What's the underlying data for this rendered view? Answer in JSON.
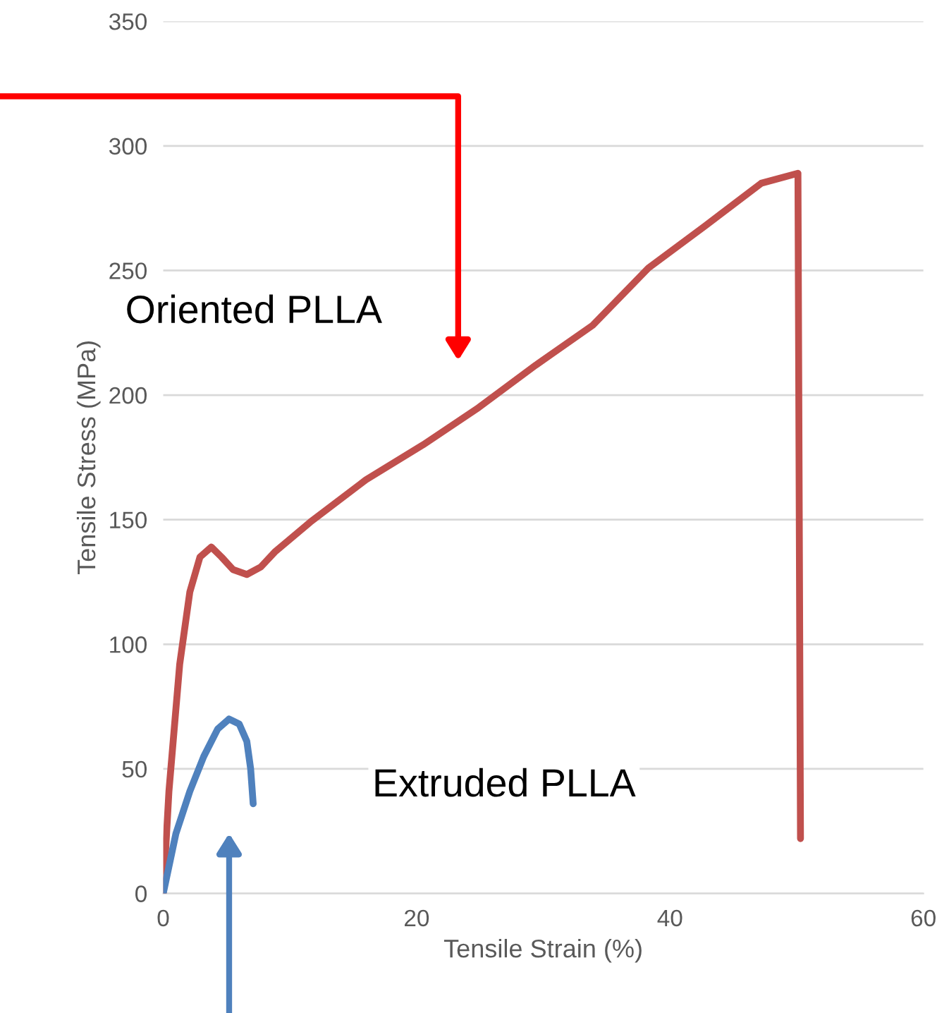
{
  "chart_data": {
    "type": "line",
    "xlabel": "Tensile Strain (%)",
    "ylabel": "Tensile Stress (MPa)",
    "xlim": [
      0,
      60
    ],
    "ylim": [
      0,
      350
    ],
    "xticks": [
      0,
      20,
      40,
      60
    ],
    "yticks": [
      0,
      50,
      100,
      150,
      200,
      250,
      300,
      350
    ],
    "grid": "y",
    "legend": false,
    "marker": "none",
    "line_style": "solid",
    "annotations": [
      "Oriented PLLA",
      "Extruded PLLA"
    ],
    "series": [
      {
        "color": "#c0504d",
        "x": [
          0,
          0.45,
          1.3,
          2.1,
          2.9,
          3.8,
          4.6,
          5.5,
          6.6,
          7.7,
          8.8,
          11.6,
          16,
          20.5,
          24.9,
          29.4,
          33.9,
          38.3,
          42.8,
          47.2,
          50.1,
          50.3
        ],
        "values": [
          0,
          41,
          92,
          121,
          135,
          139,
          135,
          130,
          128,
          131,
          137,
          149,
          166,
          180,
          195,
          212,
          228,
          251,
          268,
          285,
          289,
          22
        ]
      },
      {
        "color": "#4f81bd",
        "x": [
          0,
          1,
          2.1,
          3.2,
          4.3,
          5.2,
          6,
          6.6,
          6.9,
          7.1
        ],
        "values": [
          0,
          24,
          41,
          55,
          66,
          70,
          68,
          61,
          50,
          36
        ]
      }
    ]
  }
}
